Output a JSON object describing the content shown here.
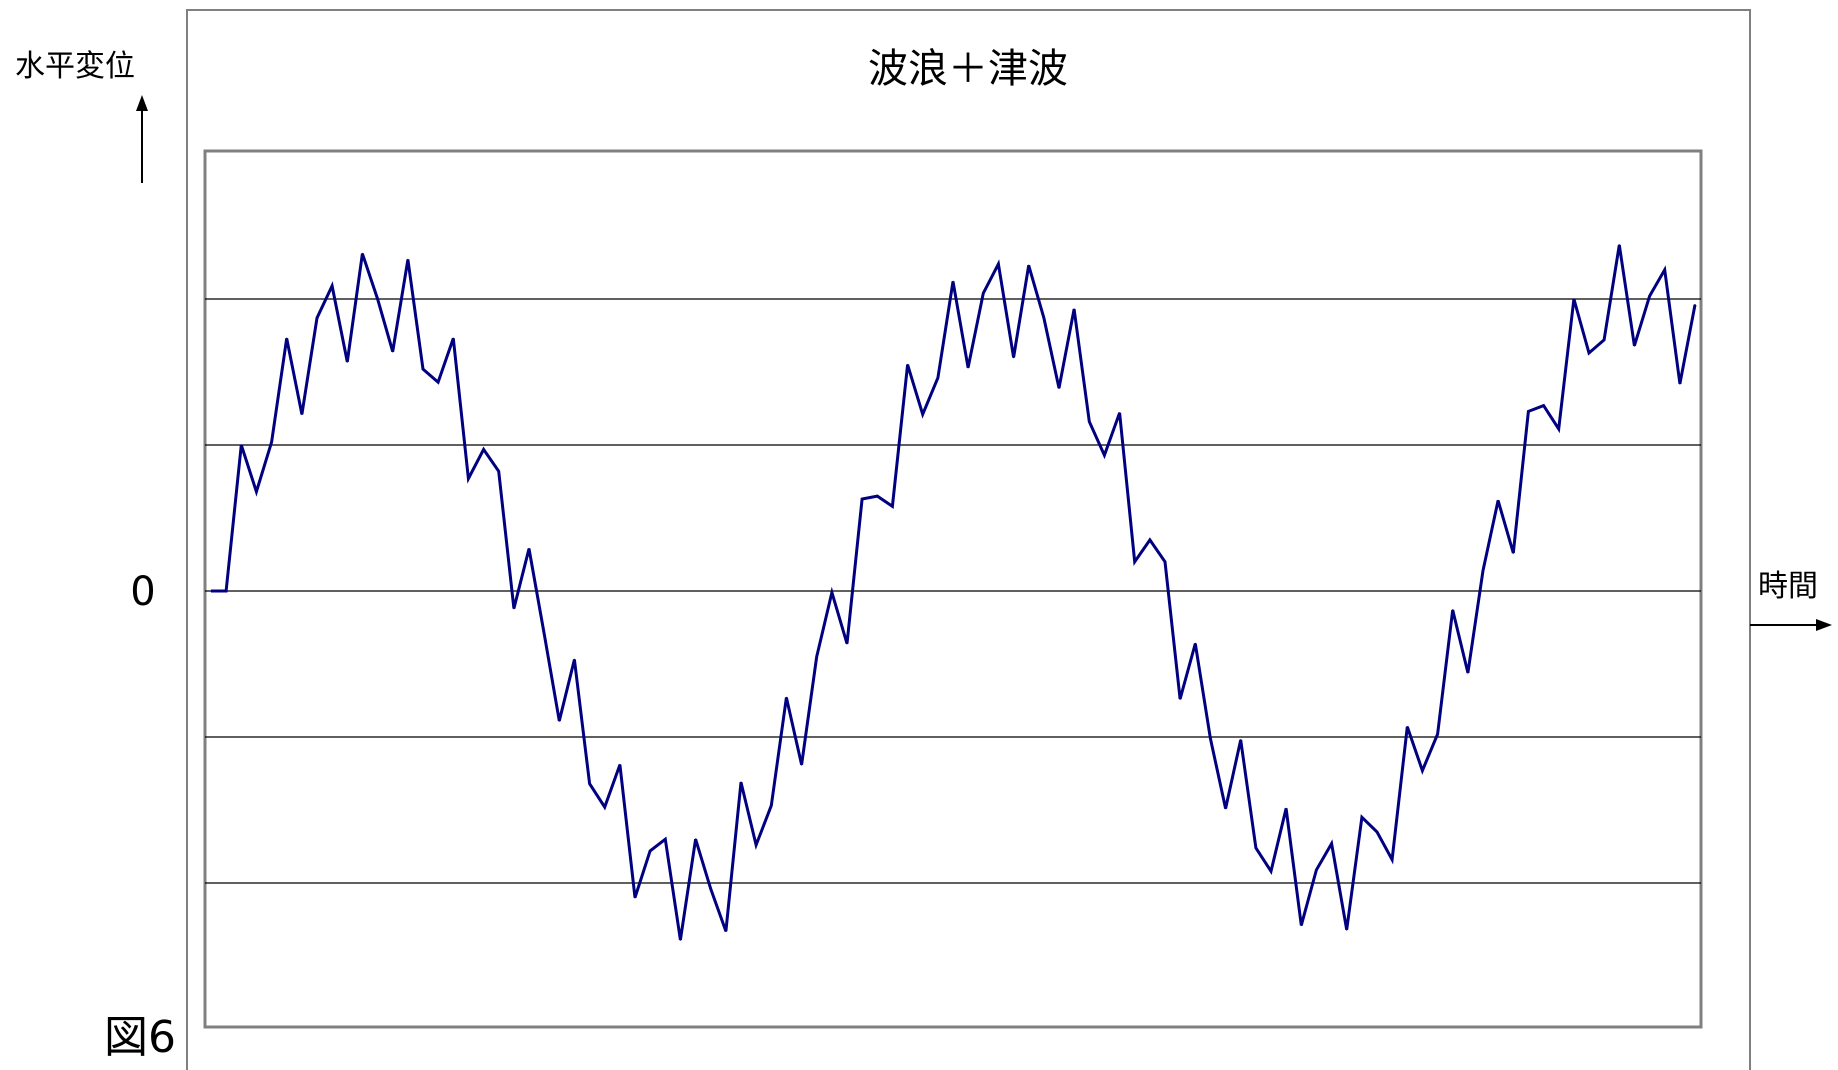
{
  "figure_label": "図6",
  "chart_data": {
    "type": "line",
    "title": "波浪＋津波",
    "ylabel": "水平変位",
    "xlabel": "時間",
    "y_tick_labels": [
      {
        "value": 0,
        "label": "0"
      }
    ],
    "xlim": [
      0,
      124
    ],
    "ylim": [
      -3,
      3
    ],
    "grid": true,
    "line_color": "#000080",
    "series": [
      {
        "values": [
          0,
          0,
          1,
          0.68,
          1.02,
          1.73,
          1.21,
          1.87,
          2.09,
          1.57,
          2.31,
          2.0,
          1.64,
          2.27,
          1.52,
          1.43,
          1.73,
          0.77,
          0.97,
          0.82,
          -0.12,
          0.29,
          -0.29,
          -0.89,
          -0.47,
          -1.32,
          -1.48,
          -1.19,
          -2.1,
          -1.78,
          -1.7,
          -2.39,
          -1.7,
          -2.04,
          -2.33,
          -1.31,
          -1.74,
          -1.47,
          -0.73,
          -1.19,
          -0.45,
          -0.01,
          -0.36,
          0.63,
          0.65,
          0.58,
          1.55,
          1.21,
          1.46,
          2.12,
          1.53,
          2.04,
          2.24,
          1.6,
          2.23,
          1.87,
          1.39,
          1.93,
          1.16,
          0.93,
          1.22,
          0.2,
          0.35,
          0.2,
          -0.74,
          -0.36,
          -1.01,
          -1.49,
          -1.02,
          -1.76,
          -1.92,
          -1.49,
          -2.29,
          -1.91,
          -1.73,
          -2.32,
          -1.55,
          -1.65,
          -1.84,
          -0.93,
          -1.23,
          -0.98,
          -0.13,
          -0.56,
          0.14,
          0.62,
          0.26,
          1.23,
          1.27,
          1.11,
          2.0,
          1.63,
          1.72,
          2.37,
          1.68,
          2.02,
          2.2,
          1.42,
          1.96
        ]
      }
    ]
  }
}
